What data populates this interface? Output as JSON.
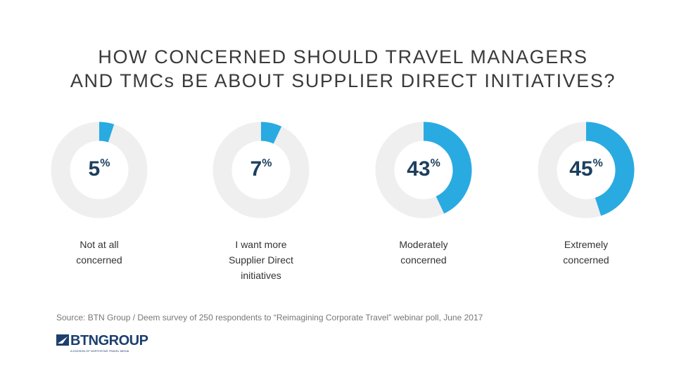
{
  "chart_data": {
    "type": "donut",
    "title": [
      "HOW CONCERNED SHOULD TRAVEL MANAGERS",
      "AND TMCs BE ABOUT SUPPLIER DIRECT INITIATIVES?"
    ],
    "categories": [
      "Not at all concerned",
      "I want more Supplier Direct initiatives",
      "Moderately concerned",
      "Extremely concerned"
    ],
    "values": [
      5,
      7,
      43,
      45
    ],
    "value_labels": [
      "5%",
      "7%",
      "43%",
      "45%"
    ],
    "color": "#29abe2",
    "track_color": "#efefef",
    "source": "Source: BTN Group / Deem survey of 250 respondents to “Reimagining Corporate Travel” webinar poll, June 2017",
    "logo": {
      "name": "BTNGROUP",
      "tagline": "A DIVISION OF NORTHSTAR TRAVEL MEDIA"
    }
  }
}
